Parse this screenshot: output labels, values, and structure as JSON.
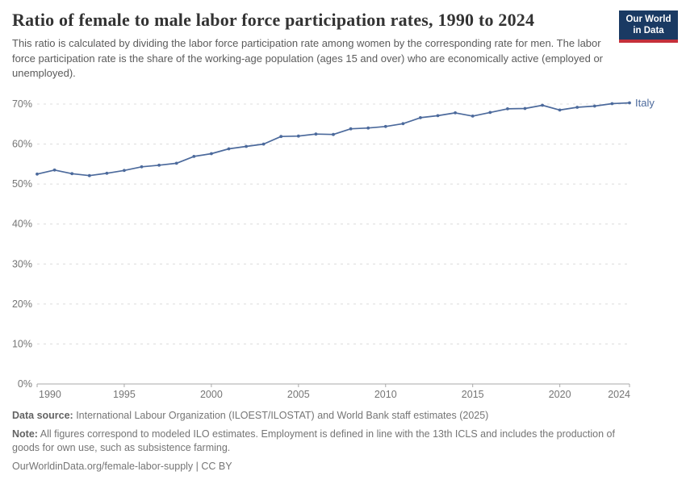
{
  "header": {
    "title": "Ratio of female to male labor force participation rates, 1990 to 2024",
    "subtitle": "This ratio is calculated by dividing the labor force participation rate among women by the corresponding rate for men. The labor force participation rate is the share of the working-age population (ages 15 and over) who are economically active (employed or unemployed)."
  },
  "logo": {
    "line1": "Our World",
    "line2": "in Data",
    "bg_color": "#1a3a63",
    "bar_color": "#c5303a"
  },
  "chart_data": {
    "type": "line",
    "title": "Ratio of female to male labor force participation rates, 1990 to 2024",
    "x": [
      1990,
      1991,
      1992,
      1993,
      1994,
      1995,
      1996,
      1997,
      1998,
      1999,
      2000,
      2001,
      2002,
      2003,
      2004,
      2005,
      2006,
      2007,
      2008,
      2009,
      2010,
      2011,
      2012,
      2013,
      2014,
      2015,
      2016,
      2017,
      2018,
      2019,
      2020,
      2021,
      2022,
      2023,
      2024
    ],
    "series": [
      {
        "name": "Italy",
        "color": "#4c6a9c",
        "values": [
          52.5,
          53.5,
          52.6,
          52.1,
          52.7,
          53.4,
          54.3,
          54.7,
          55.2,
          56.9,
          57.6,
          58.8,
          59.4,
          60.0,
          61.9,
          62.0,
          62.5,
          62.4,
          63.8,
          64.0,
          64.4,
          65.1,
          66.6,
          67.1,
          67.8,
          67.0,
          67.9,
          68.8,
          68.9,
          69.7,
          68.5,
          69.2,
          69.5,
          70.1,
          70.3
        ]
      }
    ],
    "x_ticks": [
      1990,
      1995,
      2000,
      2005,
      2010,
      2015,
      2020,
      2024
    ],
    "y_ticks": [
      0,
      10,
      20,
      30,
      40,
      50,
      60,
      70
    ],
    "y_tick_suffix": "%",
    "xlim": [
      1990,
      2024
    ],
    "ylim": [
      0,
      70
    ],
    "grid": "dashed-horizontal",
    "legend_position": "end-of-line-label",
    "end_label": "Italy",
    "colors": {
      "grid": "#dcdcdc",
      "axis": "#a9a9a9",
      "tick_label": "#757575"
    }
  },
  "footer": {
    "data_source_label": "Data source:",
    "data_source_text": " International Labour Organization (ILOEST/ILOSTAT) and World Bank staff estimates (2025)",
    "note_label": "Note:",
    "note_text": " All figures correspond to modeled ILO estimates. Employment is defined in line with the 13th ICLS and includes the production of goods for own use, such as subsistence farming.",
    "link": "OurWorldinData.org/female-labor-supply | CC BY"
  }
}
